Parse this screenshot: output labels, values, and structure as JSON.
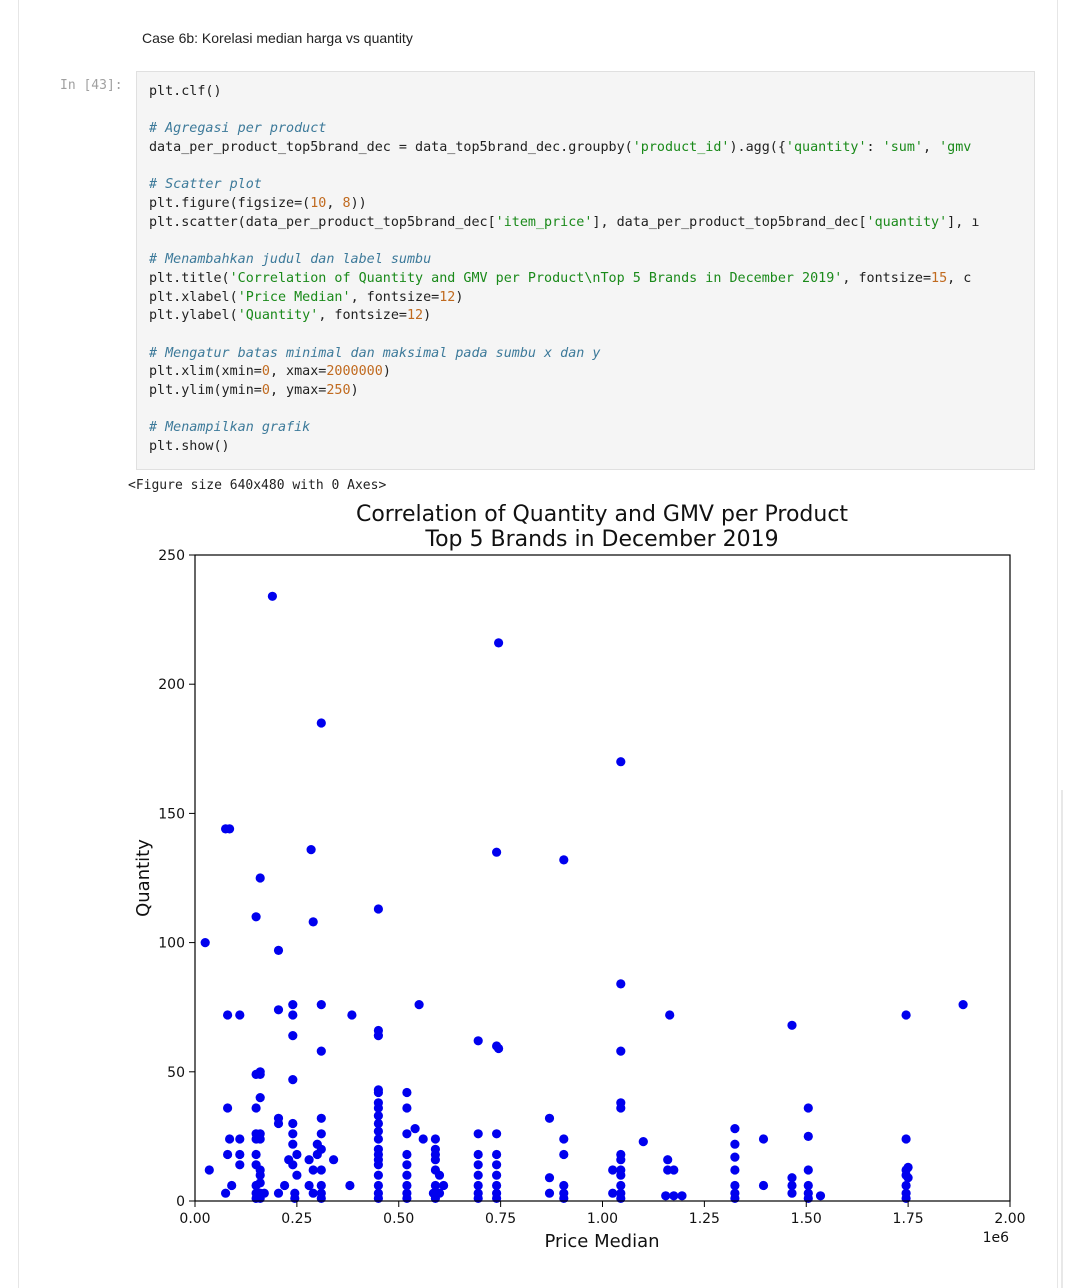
{
  "notebook": {
    "heading": "Case 6b: Korelasi median harga vs quantity",
    "cell": {
      "prompt": "In [43]:",
      "lines": [
        [
          {
            "t": "plt.clf()"
          }
        ],
        [],
        [
          {
            "t": "# Agregasi per product",
            "k": "c"
          }
        ],
        [
          {
            "t": "data_per_product_top5brand_dec = data_top5brand_dec.groupby("
          },
          {
            "t": "'product_id'",
            "k": "s"
          },
          {
            "t": ").agg({"
          },
          {
            "t": "'quantity'",
            "k": "s"
          },
          {
            "t": ": "
          },
          {
            "t": "'sum'",
            "k": "s"
          },
          {
            "t": ", "
          },
          {
            "t": "'gmv",
            "k": "s"
          }
        ],
        [],
        [
          {
            "t": "# Scatter plot",
            "k": "c"
          }
        ],
        [
          {
            "t": "plt.figure(figsize=("
          },
          {
            "t": "10",
            "k": "n"
          },
          {
            "t": ", "
          },
          {
            "t": "8",
            "k": "n"
          },
          {
            "t": "))"
          }
        ],
        [
          {
            "t": "plt.scatter(data_per_product_top5brand_dec["
          },
          {
            "t": "'item_price'",
            "k": "s"
          },
          {
            "t": "], data_per_product_top5brand_dec["
          },
          {
            "t": "'quantity'",
            "k": "s"
          },
          {
            "t": "], ı"
          }
        ],
        [],
        [
          {
            "t": "# Menambahkan judul dan label sumbu",
            "k": "c"
          }
        ],
        [
          {
            "t": "plt.title("
          },
          {
            "t": "'Correlation of Quantity and GMV per Product\\nTop 5 Brands in December 2019'",
            "k": "s"
          },
          {
            "t": ", fontsize="
          },
          {
            "t": "15",
            "k": "n"
          },
          {
            "t": ", c"
          }
        ],
        [
          {
            "t": "plt.xlabel("
          },
          {
            "t": "'Price Median'",
            "k": "s"
          },
          {
            "t": ", fontsize="
          },
          {
            "t": "12",
            "k": "n"
          },
          {
            "t": ")"
          }
        ],
        [
          {
            "t": "plt.ylabel("
          },
          {
            "t": "'Quantity'",
            "k": "s"
          },
          {
            "t": ", fontsize="
          },
          {
            "t": "12",
            "k": "n"
          },
          {
            "t": ")"
          }
        ],
        [],
        [
          {
            "t": "# Mengatur batas minimal dan maksimal pada sumbu x dan y",
            "k": "c"
          }
        ],
        [
          {
            "t": "plt.xlim(xmin="
          },
          {
            "t": "0",
            "k": "n"
          },
          {
            "t": ", xmax="
          },
          {
            "t": "2000000",
            "k": "n"
          },
          {
            "t": ")"
          }
        ],
        [
          {
            "t": "plt.ylim(ymin="
          },
          {
            "t": "0",
            "k": "n"
          },
          {
            "t": ", ymax="
          },
          {
            "t": "250",
            "k": "n"
          },
          {
            "t": ")"
          }
        ],
        [],
        [
          {
            "t": "# Menampilkan grafik",
            "k": "c"
          }
        ],
        [
          {
            "t": "plt.show()"
          }
        ]
      ]
    },
    "output_text": "<Figure size 640x480 with 0 Axes>"
  },
  "colors": {
    "comment": "#3d7a9a",
    "string": "#1a8a1a",
    "number": "#c06a1f",
    "marker": "#0000ee"
  },
  "chart_data": {
    "type": "scatter",
    "title": "Correlation of Quantity and GMV per Product",
    "subtitle": "Top 5 Brands in December 2019",
    "xlabel": "Price Median",
    "ylabel": "Quantity",
    "x_offset_label": "1e6",
    "xlim": [
      0,
      2000000
    ],
    "ylim": [
      0,
      250
    ],
    "xticks": [
      0,
      250000,
      500000,
      750000,
      1000000,
      1250000,
      1500000,
      1750000,
      2000000
    ],
    "xtick_labels": [
      "0.00",
      "0.25",
      "0.50",
      "0.75",
      "1.00",
      "1.25",
      "1.50",
      "1.75",
      "2.00"
    ],
    "yticks": [
      0,
      50,
      100,
      150,
      200,
      250
    ],
    "ytick_labels": [
      "0",
      "50",
      "100",
      "150",
      "200",
      "250"
    ],
    "grid": false,
    "points": [
      [
        190000,
        234
      ],
      [
        745000,
        216
      ],
      [
        310000,
        185
      ],
      [
        1045000,
        170
      ],
      [
        75000,
        144
      ],
      [
        85000,
        144
      ],
      [
        285000,
        136
      ],
      [
        740000,
        135
      ],
      [
        905000,
        132
      ],
      [
        160000,
        125
      ],
      [
        150000,
        110
      ],
      [
        290000,
        108
      ],
      [
        450000,
        113
      ],
      [
        25000,
        100
      ],
      [
        205000,
        97
      ],
      [
        1045000,
        84
      ],
      [
        1885000,
        76
      ],
      [
        240000,
        76
      ],
      [
        310000,
        76
      ],
      [
        550000,
        76
      ],
      [
        205000,
        74
      ],
      [
        240000,
        72
      ],
      [
        80000,
        72
      ],
      [
        110000,
        72
      ],
      [
        385000,
        72
      ],
      [
        1165000,
        72
      ],
      [
        1745000,
        72
      ],
      [
        1465000,
        68
      ],
      [
        450000,
        66
      ],
      [
        450000,
        64
      ],
      [
        240000,
        64
      ],
      [
        695000,
        62
      ],
      [
        740000,
        60
      ],
      [
        745000,
        59
      ],
      [
        1045000,
        58
      ],
      [
        310000,
        58
      ],
      [
        160000,
        50
      ],
      [
        150000,
        49
      ],
      [
        160000,
        49
      ],
      [
        240000,
        47
      ],
      [
        450000,
        43
      ],
      [
        450000,
        42
      ],
      [
        520000,
        42
      ],
      [
        450000,
        38
      ],
      [
        1045000,
        38
      ],
      [
        1045000,
        36
      ],
      [
        450000,
        36
      ],
      [
        520000,
        36
      ],
      [
        160000,
        40
      ],
      [
        150000,
        36
      ],
      [
        80000,
        36
      ],
      [
        1505000,
        36
      ],
      [
        450000,
        33
      ],
      [
        450000,
        30
      ],
      [
        870000,
        32
      ],
      [
        310000,
        32
      ],
      [
        205000,
        32
      ],
      [
        205000,
        30
      ],
      [
        240000,
        30
      ],
      [
        450000,
        27
      ],
      [
        520000,
        26
      ],
      [
        540000,
        28
      ],
      [
        1325000,
        28
      ],
      [
        150000,
        26
      ],
      [
        160000,
        26
      ],
      [
        240000,
        26
      ],
      [
        310000,
        26
      ],
      [
        695000,
        26
      ],
      [
        740000,
        26
      ],
      [
        85000,
        24
      ],
      [
        110000,
        24
      ],
      [
        150000,
        24
      ],
      [
        160000,
        24
      ],
      [
        240000,
        22
      ],
      [
        300000,
        22
      ],
      [
        450000,
        24
      ],
      [
        560000,
        24
      ],
      [
        590000,
        24
      ],
      [
        905000,
        24
      ],
      [
        1100000,
        23
      ],
      [
        1395000,
        24
      ],
      [
        1505000,
        25
      ],
      [
        1745000,
        24
      ],
      [
        310000,
        20
      ],
      [
        450000,
        20
      ],
      [
        590000,
        20
      ],
      [
        1325000,
        22
      ],
      [
        80000,
        18
      ],
      [
        110000,
        18
      ],
      [
        150000,
        18
      ],
      [
        250000,
        18
      ],
      [
        300000,
        18
      ],
      [
        450000,
        18
      ],
      [
        520000,
        18
      ],
      [
        590000,
        18
      ],
      [
        695000,
        18
      ],
      [
        740000,
        18
      ],
      [
        905000,
        18
      ],
      [
        1045000,
        18
      ],
      [
        230000,
        16
      ],
      [
        280000,
        16
      ],
      [
        340000,
        16
      ],
      [
        450000,
        16
      ],
      [
        590000,
        16
      ],
      [
        1160000,
        16
      ],
      [
        1045000,
        16
      ],
      [
        1325000,
        17
      ],
      [
        35000,
        12
      ],
      [
        110000,
        14
      ],
      [
        150000,
        14
      ],
      [
        160000,
        12
      ],
      [
        240000,
        14
      ],
      [
        290000,
        12
      ],
      [
        310000,
        12
      ],
      [
        450000,
        14
      ],
      [
        520000,
        14
      ],
      [
        590000,
        12
      ],
      [
        695000,
        14
      ],
      [
        740000,
        14
      ],
      [
        1025000,
        12
      ],
      [
        1045000,
        12
      ],
      [
        1160000,
        12
      ],
      [
        1175000,
        12
      ],
      [
        1325000,
        12
      ],
      [
        1505000,
        12
      ],
      [
        1745000,
        12
      ],
      [
        1750000,
        13
      ],
      [
        160000,
        10
      ],
      [
        250000,
        10
      ],
      [
        450000,
        10
      ],
      [
        520000,
        10
      ],
      [
        600000,
        10
      ],
      [
        695000,
        10
      ],
      [
        740000,
        10
      ],
      [
        870000,
        9
      ],
      [
        1045000,
        10
      ],
      [
        1465000,
        9
      ],
      [
        1745000,
        10
      ],
      [
        1750000,
        9
      ],
      [
        90000,
        6
      ],
      [
        150000,
        6
      ],
      [
        160000,
        7
      ],
      [
        220000,
        6
      ],
      [
        280000,
        6
      ],
      [
        310000,
        6
      ],
      [
        380000,
        6
      ],
      [
        450000,
        6
      ],
      [
        520000,
        6
      ],
      [
        590000,
        6
      ],
      [
        610000,
        6
      ],
      [
        695000,
        6
      ],
      [
        740000,
        6
      ],
      [
        905000,
        6
      ],
      [
        1045000,
        6
      ],
      [
        1325000,
        6
      ],
      [
        1395000,
        6
      ],
      [
        1465000,
        6
      ],
      [
        1505000,
        6
      ],
      [
        1745000,
        6
      ],
      [
        75000,
        3
      ],
      [
        150000,
        3
      ],
      [
        160000,
        3
      ],
      [
        170000,
        3
      ],
      [
        205000,
        3
      ],
      [
        245000,
        3
      ],
      [
        290000,
        3
      ],
      [
        310000,
        3
      ],
      [
        450000,
        3
      ],
      [
        520000,
        3
      ],
      [
        585000,
        3
      ],
      [
        600000,
        3
      ],
      [
        695000,
        3
      ],
      [
        740000,
        3
      ],
      [
        870000,
        3
      ],
      [
        905000,
        3
      ],
      [
        1025000,
        3
      ],
      [
        1045000,
        3
      ],
      [
        1155000,
        2
      ],
      [
        1175000,
        2
      ],
      [
        1195000,
        2
      ],
      [
        1325000,
        3
      ],
      [
        1465000,
        3
      ],
      [
        1505000,
        3
      ],
      [
        1535000,
        2
      ],
      [
        1745000,
        3
      ],
      [
        150000,
        1
      ],
      [
        160000,
        1
      ],
      [
        245000,
        1
      ],
      [
        310000,
        1
      ],
      [
        450000,
        1
      ],
      [
        520000,
        1
      ],
      [
        590000,
        1
      ],
      [
        695000,
        1
      ],
      [
        740000,
        1
      ],
      [
        905000,
        1
      ],
      [
        1045000,
        1
      ],
      [
        1325000,
        1
      ],
      [
        1505000,
        1
      ],
      [
        1745000,
        1
      ]
    ]
  }
}
